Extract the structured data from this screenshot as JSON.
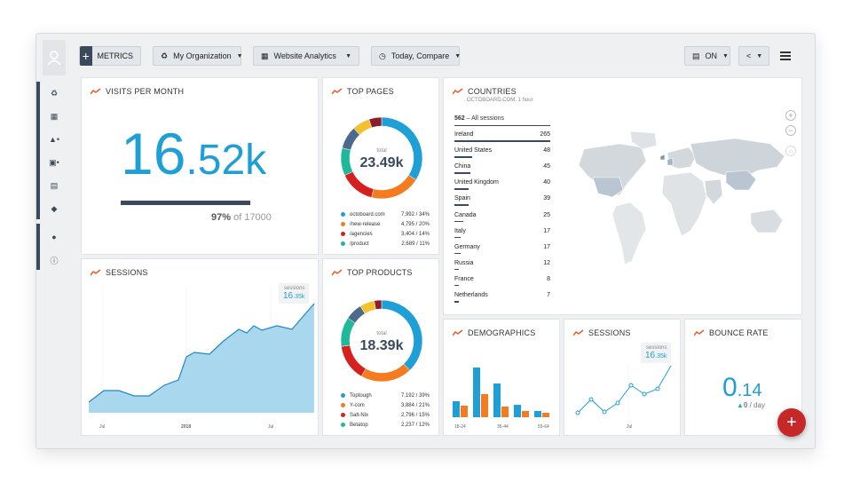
{
  "toolbar": {
    "metrics_label": "METRICS",
    "org_label": "My Organization",
    "dashboard_label": "Website Analytics",
    "date_label": "Today, Compare",
    "on_label": "ON"
  },
  "visits": {
    "title": "VISITS PER MONTH",
    "value_int": "16",
    "value_dec": ".52k",
    "percent": "97%",
    "of_text": "of 17000",
    "progress": 0.97
  },
  "top_pages": {
    "title": "TOP PAGES",
    "center_label": "total",
    "center_value": "23.49k",
    "items": [
      {
        "name": "octoboard.com",
        "value": "7,992",
        "pct": "/ 34%",
        "color": "#1e9fd6"
      },
      {
        "name": "/new-release",
        "value": "4,795",
        "pct": "/ 20%",
        "color": "#f47b20"
      },
      {
        "name": "/agencies",
        "value": "3,404",
        "pct": "/ 14%",
        "color": "#d62020"
      },
      {
        "name": "/product",
        "value": "2,689",
        "pct": "/ 11%",
        "color": "#1fb89a"
      }
    ]
  },
  "countries": {
    "title": "COUNTRIES",
    "subtitle": "OCTOBOARD.COM, 1 hour",
    "total_value": "562",
    "total_label": "– All sessions",
    "rows": [
      {
        "name": "Ireland",
        "value": "265"
      },
      {
        "name": "United States",
        "value": "48"
      },
      {
        "name": "China",
        "value": "45"
      },
      {
        "name": "United Kingdom",
        "value": "40"
      },
      {
        "name": "Spain",
        "value": "39"
      },
      {
        "name": "Canada",
        "value": "25"
      },
      {
        "name": "Italy",
        "value": "17"
      },
      {
        "name": "Germany",
        "value": "17"
      },
      {
        "name": "Russia",
        "value": "12"
      },
      {
        "name": "France",
        "value": "8"
      },
      {
        "name": "Netherlands",
        "value": "7"
      }
    ]
  },
  "sessions_big": {
    "title": "SESSIONS",
    "badge_label": "sessions",
    "badge_int": "16",
    "badge_dec": ".35k",
    "x_labels": [
      "Jul",
      "2018",
      "Jul"
    ]
  },
  "top_products": {
    "title": "TOP PRODUCTS",
    "center_label": "total",
    "center_value": "18.39k",
    "items": [
      {
        "name": "Toptough",
        "value": "7,192",
        "pct": "/ 39%",
        "color": "#1e9fd6"
      },
      {
        "name": "Y-com",
        "value": "3,884",
        "pct": "/ 21%",
        "color": "#f47b20"
      },
      {
        "name": "Salt-Nix",
        "value": "2,796",
        "pct": "/ 15%",
        "color": "#d62020"
      },
      {
        "name": "Betatop",
        "value": "2,237",
        "pct": "/ 12%",
        "color": "#1fb89a"
      }
    ]
  },
  "demographics": {
    "title": "DEMOGRAPHICS",
    "x_labels": [
      "18-24",
      "35-44",
      "55-64"
    ]
  },
  "sessions_small": {
    "title": "SESSIONS",
    "badge_label": "sessions",
    "badge_int": "16",
    "badge_dec": ".35k",
    "x_label": "Jul"
  },
  "bounce": {
    "title": "BOUNCE RATE",
    "value_int": "0",
    "value_dec": ".14",
    "delta": "0",
    "per": "/ day"
  },
  "fab_label": "+"
}
